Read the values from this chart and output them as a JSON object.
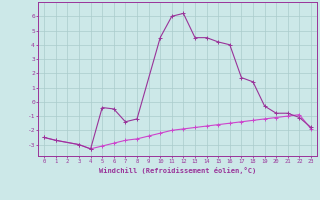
{
  "bg_color": "#cce8e8",
  "grid_color": "#aacccc",
  "line1_color": "#993399",
  "line2_color": "#cc44cc",
  "xlabel": "Windchill (Refroidissement éolien,°C)",
  "ylim": [
    -3.8,
    7.0
  ],
  "xlim": [
    -0.5,
    23.5
  ],
  "yticks": [
    -3,
    -2,
    -1,
    0,
    1,
    2,
    3,
    4,
    5,
    6
  ],
  "xticks": [
    0,
    1,
    2,
    3,
    4,
    5,
    6,
    7,
    8,
    9,
    10,
    11,
    12,
    13,
    14,
    15,
    16,
    17,
    18,
    19,
    20,
    21,
    22,
    23
  ],
  "line1_x": [
    0,
    1,
    3,
    4,
    5,
    6,
    7,
    8,
    10,
    11,
    12,
    13,
    14,
    15,
    16,
    17,
    18,
    19,
    20,
    21,
    22,
    23
  ],
  "line1_y": [
    -2.5,
    -2.7,
    -3.0,
    -3.3,
    -0.4,
    -0.5,
    -1.4,
    -1.2,
    4.5,
    6.0,
    6.2,
    4.5,
    4.5,
    4.2,
    4.0,
    1.7,
    1.4,
    -0.3,
    -0.8,
    -0.8,
    -1.1,
    -1.8
  ],
  "line2_x": [
    0,
    1,
    3,
    4,
    5,
    6,
    7,
    8,
    9,
    10,
    11,
    12,
    13,
    14,
    15,
    16,
    17,
    18,
    19,
    20,
    21,
    22,
    23
  ],
  "line2_y": [
    -2.5,
    -2.7,
    -3.0,
    -3.3,
    -3.1,
    -2.9,
    -2.7,
    -2.6,
    -2.4,
    -2.2,
    -2.0,
    -1.9,
    -1.8,
    -1.7,
    -1.6,
    -1.5,
    -1.4,
    -1.3,
    -1.2,
    -1.1,
    -1.0,
    -0.9,
    -1.9
  ]
}
